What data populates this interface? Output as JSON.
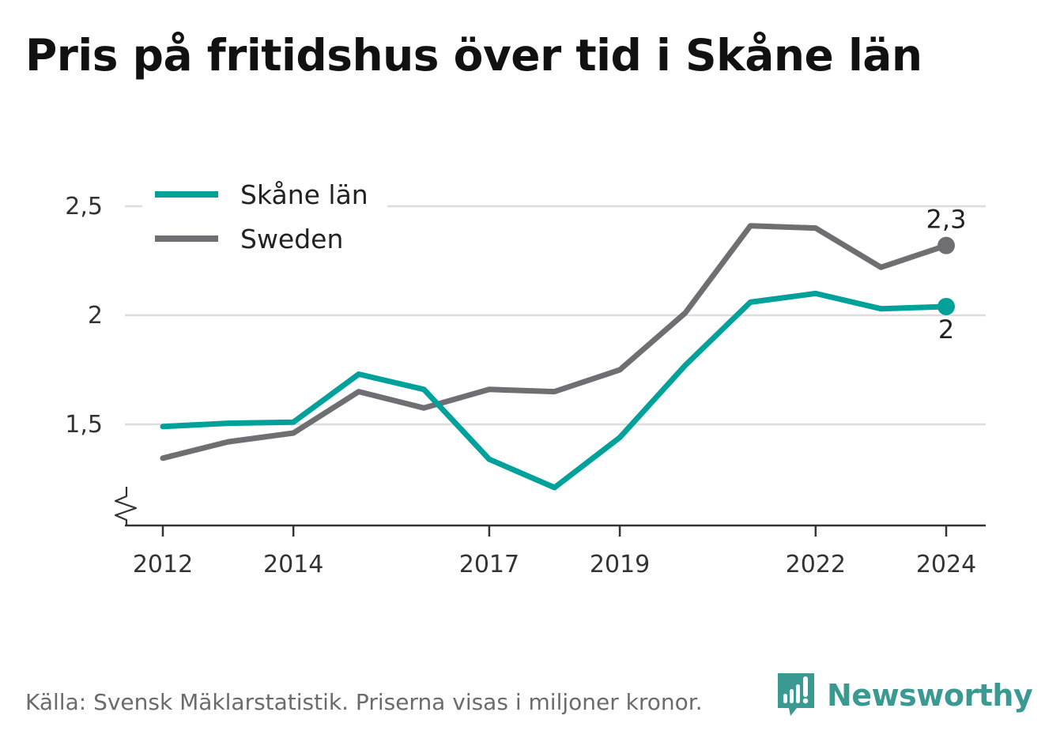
{
  "title": "Pris på fritidshus över tid i Skåne län",
  "source_note": "Källa: Svensk Mäklarstatistik. Priserna visas i miljoner kronor.",
  "brand": {
    "name": "Newsworthy",
    "icon": "newsworthy-logo-icon",
    "color": "#3a9a92"
  },
  "colors": {
    "skane": "#00a19a",
    "sweden": "#6f6e73",
    "grid": "#dddddd",
    "axis": "#333333",
    "text": "#333333"
  },
  "chart_data": {
    "type": "line",
    "title": "Pris på fritidshus över tid i Skåne län",
    "xlabel": "",
    "ylabel": "",
    "x": [
      2012,
      2013,
      2014,
      2015,
      2016,
      2017,
      2018,
      2019,
      2020,
      2021,
      2022,
      2023,
      2024
    ],
    "x_tick_values": [
      2012,
      2014,
      2017,
      2019,
      2022,
      2024
    ],
    "x_tick_labels": [
      "2012",
      "2014",
      "2017",
      "2019",
      "2022",
      "2024"
    ],
    "y_ticks": [
      {
        "value": 1.5,
        "label": "1,5"
      },
      {
        "value": 2.0,
        "label": "2"
      },
      {
        "value": 2.5,
        "label": "2,5"
      }
    ],
    "ylim": [
      1.05,
      2.5
    ],
    "y_axis_break": true,
    "grid": true,
    "legend_position": "top-left",
    "series": [
      {
        "name": "Skåne län",
        "color": "#00a19a",
        "values": [
          1.49,
          1.505,
          1.51,
          1.73,
          1.66,
          1.34,
          1.21,
          1.44,
          1.77,
          2.06,
          2.1,
          2.03,
          2.04
        ],
        "end_label": "2",
        "end_label_side": "below"
      },
      {
        "name": "Sweden",
        "color": "#6f6e73",
        "values": [
          1.345,
          1.42,
          1.46,
          1.65,
          1.575,
          1.66,
          1.65,
          1.75,
          2.01,
          2.41,
          2.4,
          2.22,
          2.32
        ],
        "end_label": "2,3",
        "end_label_side": "above"
      }
    ]
  }
}
